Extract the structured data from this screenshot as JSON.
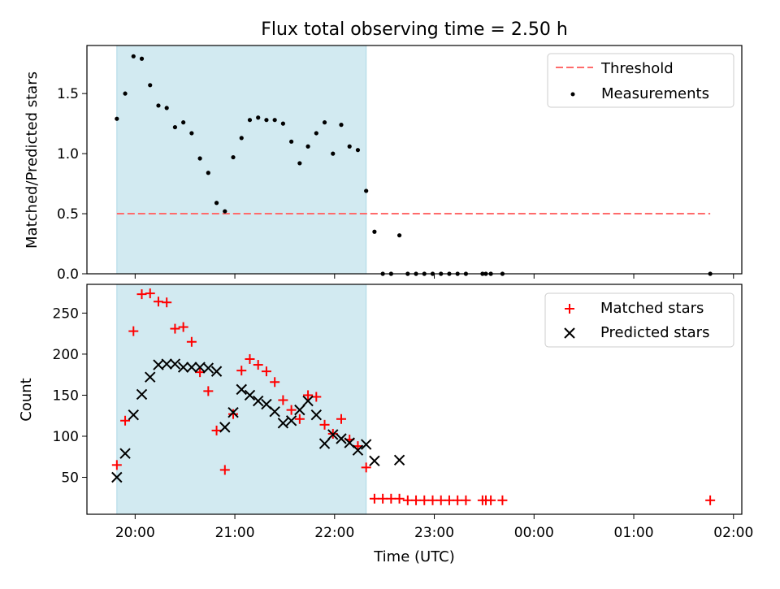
{
  "title": "Flux total observing time = 2.50 h",
  "chart_data": [
    {
      "type": "scatter",
      "title": "Flux total observing time = 2.50 h",
      "xlabel": "",
      "ylabel": "Matched/Predicted stars",
      "ylim": [
        0,
        1.9
      ],
      "yticks": [
        "0.0",
        "0.5",
        "1.0",
        "1.5"
      ],
      "threshold": 0.5,
      "threshold_color": "#ff6b6b",
      "shaded_region": [
        "19:49",
        "22:19"
      ],
      "shade_color": "#add8e6",
      "legend": [
        "Threshold",
        "Measurements"
      ],
      "legend_position": "upper right",
      "x": [
        "19:49",
        "19:54",
        "19:59",
        "20:04",
        "20:09",
        "20:14",
        "20:19",
        "20:24",
        "20:29",
        "20:34",
        "20:39",
        "20:44",
        "20:49",
        "20:54",
        "20:59",
        "21:04",
        "21:09",
        "21:14",
        "21:19",
        "21:24",
        "21:29",
        "21:34",
        "21:39",
        "21:44",
        "21:49",
        "21:54",
        "21:59",
        "22:04",
        "22:09",
        "22:14",
        "22:19",
        "22:24",
        "22:29",
        "22:34",
        "22:39",
        "22:44",
        "22:49",
        "22:54",
        "22:59",
        "23:04",
        "23:09",
        "23:14",
        "23:19",
        "23:29",
        "23:31",
        "23:34",
        "23:41",
        "01:46"
      ],
      "values": [
        1.29,
        1.5,
        1.81,
        1.79,
        1.57,
        1.4,
        1.38,
        1.22,
        1.26,
        1.17,
        0.96,
        0.84,
        0.59,
        0.52,
        0.97,
        1.13,
        1.28,
        1.3,
        1.28,
        1.28,
        1.25,
        1.1,
        0.92,
        1.06,
        1.17,
        1.26,
        1.0,
        1.24,
        1.06,
        1.03,
        0.69,
        0.35,
        0.0,
        0.0,
        0.32,
        0.0,
        0.0,
        0.0,
        0.0,
        0.0,
        0.0,
        0.0,
        0.0,
        0.0,
        0.0,
        0.0,
        0.0,
        0.0
      ]
    },
    {
      "type": "scatter",
      "xlabel": "Time (UTC)",
      "ylabel": "Count",
      "ylim": [
        5,
        285
      ],
      "yticks": [
        "50",
        "100",
        "150",
        "200",
        "250"
      ],
      "xticks": [
        "20:00",
        "21:00",
        "22:00",
        "23:00",
        "00:00",
        "01:00",
        "02:00"
      ],
      "legend_position": "upper right",
      "series": [
        {
          "name": "Matched stars",
          "marker": "plus",
          "color": "#ff0000",
          "x": [
            "19:49",
            "19:54",
            "19:59",
            "20:04",
            "20:09",
            "20:14",
            "20:19",
            "20:24",
            "20:29",
            "20:34",
            "20:39",
            "20:44",
            "20:49",
            "20:54",
            "20:59",
            "21:04",
            "21:09",
            "21:14",
            "21:19",
            "21:24",
            "21:29",
            "21:34",
            "21:39",
            "21:44",
            "21:49",
            "21:54",
            "21:59",
            "22:04",
            "22:09",
            "22:14",
            "22:19",
            "22:24",
            "22:29",
            "22:34",
            "22:39",
            "22:44",
            "22:49",
            "22:54",
            "22:59",
            "23:04",
            "23:09",
            "23:14",
            "23:19",
            "23:29",
            "23:31",
            "23:34",
            "23:41",
            "01:46"
          ],
          "values": [
            65,
            119,
            228,
            273,
            274,
            264,
            263,
            231,
            233,
            215,
            178,
            155,
            107,
            59,
            127,
            180,
            194,
            187,
            179,
            166,
            144,
            132,
            121,
            150,
            148,
            114,
            103,
            121,
            96,
            88,
            62,
            24,
            24,
            24,
            24,
            22,
            22,
            22,
            22,
            22,
            22,
            22,
            22,
            22,
            22,
            22,
            22,
            22
          ]
        },
        {
          "name": "Predicted stars",
          "marker": "x",
          "color": "#000000",
          "x": [
            "19:49",
            "19:54",
            "19:59",
            "20:04",
            "20:09",
            "20:14",
            "20:19",
            "20:24",
            "20:29",
            "20:34",
            "20:39",
            "20:44",
            "20:49",
            "20:54",
            "20:59",
            "21:04",
            "21:09",
            "21:14",
            "21:19",
            "21:24",
            "21:29",
            "21:34",
            "21:39",
            "21:44",
            "21:49",
            "21:54",
            "21:59",
            "22:04",
            "22:09",
            "22:14",
            "22:19",
            "22:24",
            "22:39"
          ],
          "values": [
            50,
            79,
            126,
            151,
            172,
            187,
            188,
            188,
            184,
            184,
            184,
            183,
            179,
            111,
            129,
            157,
            150,
            143,
            139,
            130,
            116,
            119,
            132,
            143,
            126,
            91,
            102,
            97,
            92,
            83,
            90,
            70,
            71
          ]
        }
      ]
    }
  ]
}
